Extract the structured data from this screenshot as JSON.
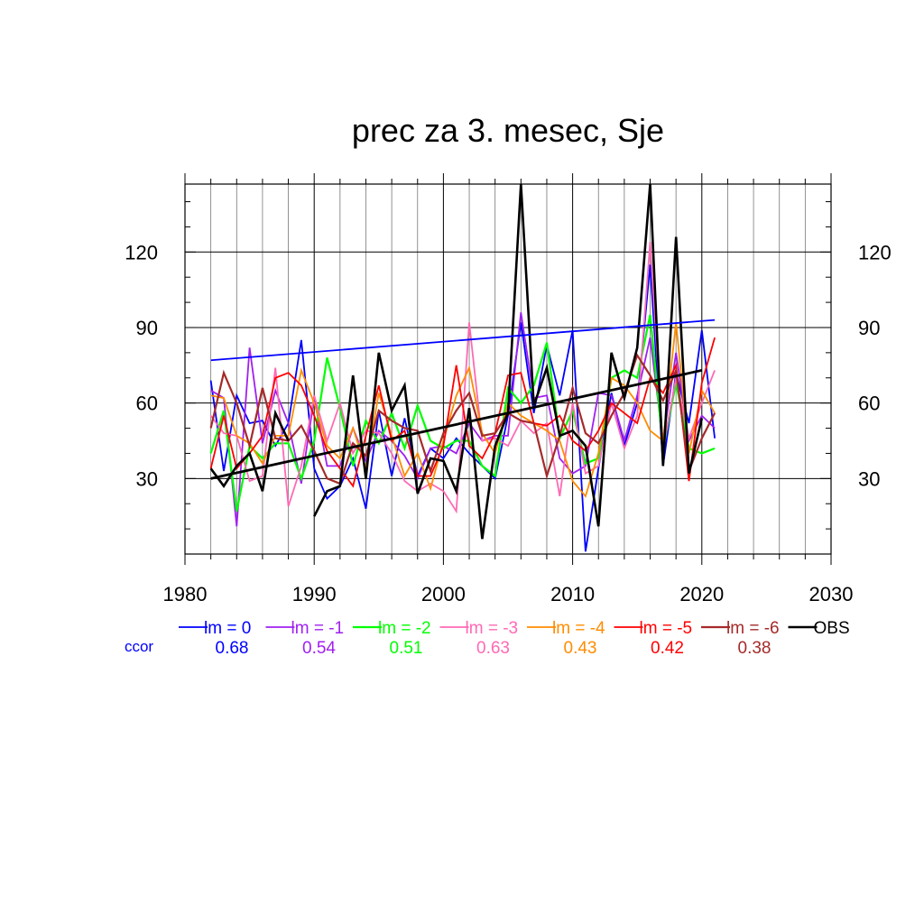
{
  "chart_data": {
    "type": "line",
    "title": "prec za 3. mesec, Sje",
    "xlabel": "",
    "ylabel": "",
    "xlim": [
      1980,
      2030
    ],
    "ylim": [
      0,
      147
    ],
    "x_ticks": [
      1980,
      1990,
      2000,
      2010,
      2020,
      2030
    ],
    "y_ticks": [
      30,
      60,
      90,
      120
    ],
    "grid": true,
    "legend_position": "bottom",
    "ccor_label": "ccor",
    "x": [
      1982,
      1983,
      1984,
      1985,
      1986,
      1987,
      1988,
      1989,
      1990,
      1991,
      1992,
      1993,
      1994,
      1995,
      1996,
      1997,
      1998,
      1999,
      2000,
      2001,
      2002,
      2003,
      2004,
      2005,
      2006,
      2007,
      2008,
      2009,
      2010,
      2011,
      2012,
      2013,
      2014,
      2015,
      2016,
      2017,
      2018,
      2019,
      2020,
      2021
    ],
    "series": [
      {
        "name": "lm = 0",
        "ccor": "0.68",
        "color": "#0000ff",
        "width": 1.8,
        "values": [
          69,
          33,
          63,
          52,
          53,
          43,
          52,
          85,
          34,
          22,
          27,
          38,
          18,
          57,
          31,
          54,
          31,
          42,
          38,
          46,
          40,
          35,
          30,
          55,
          92,
          56,
          83,
          63,
          89,
          1,
          34,
          64,
          43,
          60,
          115,
          35,
          72,
          52,
          89,
          46
        ]
      },
      {
        "name": "lm = -1",
        "ccor": "0.54",
        "color": "#a020f0",
        "width": 1.8,
        "values": [
          65,
          62,
          11,
          82,
          44,
          65,
          52,
          28,
          62,
          35,
          35,
          50,
          37,
          49,
          45,
          39,
          30,
          42,
          43,
          40,
          52,
          45,
          47,
          47,
          96,
          62,
          63,
          38,
          32,
          35,
          64,
          63,
          45,
          63,
          86,
          45,
          80,
          45,
          55,
          50
        ]
      },
      {
        "name": "lm = -2",
        "ccor": "0.51",
        "color": "#00ff00",
        "width": 2.2,
        "values": [
          40,
          57,
          17,
          43,
          38,
          44,
          44,
          30,
          45,
          78,
          58,
          35,
          53,
          44,
          56,
          42,
          59,
          45,
          42,
          45,
          45,
          35,
          31,
          66,
          60,
          67,
          84,
          46,
          57,
          36,
          38,
          70,
          73,
          70,
          95,
          42,
          68,
          42,
          40,
          42
        ]
      },
      {
        "name": "lm = -3",
        "ccor": "0.63",
        "color": "#ff69b4",
        "width": 1.8,
        "values": [
          55,
          48,
          47,
          29,
          31,
          74,
          19,
          35,
          63,
          45,
          60,
          40,
          49,
          48,
          40,
          29,
          25,
          28,
          25,
          17,
          92,
          45,
          46,
          43,
          53,
          48,
          52,
          23,
          60,
          32,
          35,
          60,
          42,
          55,
          124,
          42,
          70,
          46,
          60,
          73
        ]
      },
      {
        "name": "lm = -4",
        "ccor": "0.43",
        "color": "#ff8c00",
        "width": 1.8,
        "values": [
          63,
          62,
          47,
          44,
          36,
          47,
          47,
          73,
          60,
          43,
          38,
          50,
          34,
          64,
          47,
          31,
          40,
          26,
          45,
          63,
          74,
          48,
          40,
          60,
          55,
          52,
          49,
          45,
          29,
          23,
          40,
          70,
          67,
          60,
          49,
          45,
          92,
          40,
          65,
          56
        ]
      },
      {
        "name": "lm = -5",
        "ccor": "0.42",
        "color": "#ff0000",
        "width": 1.8,
        "values": [
          34,
          55,
          34,
          40,
          47,
          70,
          72,
          67,
          55,
          41,
          34,
          27,
          47,
          67,
          45,
          49,
          31,
          31,
          43,
          75,
          43,
          38,
          48,
          71,
          72,
          52,
          51,
          55,
          45,
          41,
          49,
          60,
          56,
          52,
          70,
          64,
          75,
          29,
          68,
          86
        ]
      },
      {
        "name": "lm = -6",
        "ccor": "0.38",
        "color": "#a52a2a",
        "width": 2.2,
        "values": [
          50,
          72,
          60,
          43,
          66,
          46,
          45,
          51,
          41,
          30,
          28,
          44,
          39,
          57,
          53,
          50,
          49,
          33,
          48,
          57,
          64,
          47,
          48,
          56,
          53,
          52,
          31,
          47,
          66,
          48,
          44,
          55,
          64,
          79,
          71,
          61,
          73,
          33,
          46,
          56
        ]
      },
      {
        "name": "OBS",
        "ccor": "",
        "color": "#000000",
        "width": 2.6,
        "values": [
          34,
          27,
          35,
          40,
          25,
          56,
          45,
          null,
          15,
          25,
          27,
          71,
          30,
          80,
          57,
          67,
          24,
          38,
          37,
          25,
          58,
          6,
          43,
          56,
          147,
          59,
          74,
          47,
          49,
          43,
          11,
          80,
          62,
          82,
          147,
          35,
          126,
          32,
          54,
          null
        ]
      }
    ],
    "trendlines": [
      {
        "series": "lm = 0",
        "color": "#0000ff",
        "x": [
          1982,
          2021
        ],
        "y": [
          77,
          93
        ]
      },
      {
        "series": "OBS",
        "color": "#000000",
        "x": [
          1982,
          2020
        ],
        "y": [
          30,
          73
        ]
      }
    ]
  }
}
